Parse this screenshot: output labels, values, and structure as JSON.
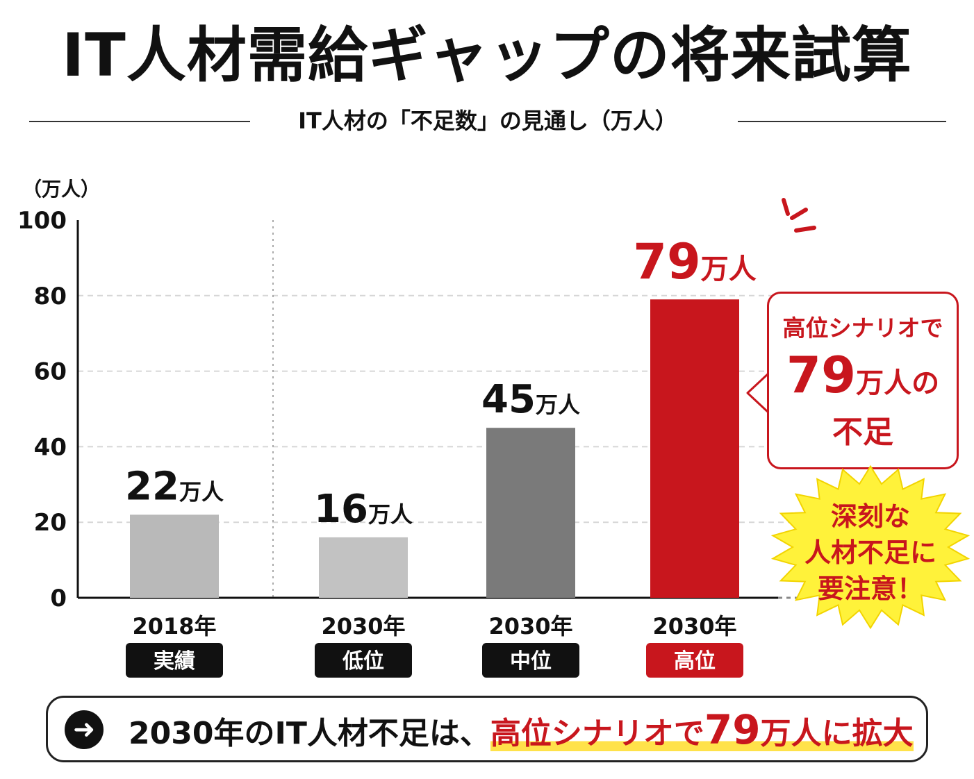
{
  "title": "IT人材需給ギャップの将来試算",
  "subtitle": "IT人材の「不足数」の見通し（万人）",
  "chart_data": {
    "type": "bar",
    "unit_label": "（万人）",
    "ylim": [
      0,
      100
    ],
    "y_ticks": [
      0,
      20,
      40,
      60,
      80,
      100
    ],
    "grid": true,
    "bars": [
      {
        "year": "2018年",
        "tag": "実績",
        "value": 22,
        "value_label": "22",
        "unit": "万人",
        "color": "#b9b9b9",
        "tag_color": "#111111",
        "label_color": "#111111"
      },
      {
        "year": "2030年",
        "tag": "低位",
        "value": 16,
        "value_label": "16",
        "unit": "万人",
        "color": "#c2c2c2",
        "tag_color": "#111111",
        "label_color": "#111111"
      },
      {
        "year": "2030年",
        "tag": "中位",
        "value": 45,
        "value_label": "45",
        "unit": "万人",
        "color": "#7a7a7a",
        "tag_color": "#111111",
        "label_color": "#111111"
      },
      {
        "year": "2030年",
        "tag": "高位",
        "value": 79,
        "value_label": "79",
        "unit": "万人",
        "color": "#c8161d",
        "tag_color": "#c8161d",
        "label_color": "#c8161d"
      }
    ]
  },
  "callout": {
    "line1": "高位シナリオで",
    "number": "79",
    "unit": "万人の",
    "line3": "不足"
  },
  "burst": {
    "lines": [
      "深刻な",
      "人材不足に",
      "要注意！"
    ],
    "fill": "#fff23a"
  },
  "bottom": {
    "arrow_glyph": "➜",
    "text_prefix": "2030年のIT人材不足は、",
    "highlight_text": "高位シナリオで",
    "highlight_number": "79",
    "highlight_suffix": "万人に拡大"
  },
  "colors": {
    "accent": "#c8161d",
    "highlight": "#ffe24a"
  }
}
